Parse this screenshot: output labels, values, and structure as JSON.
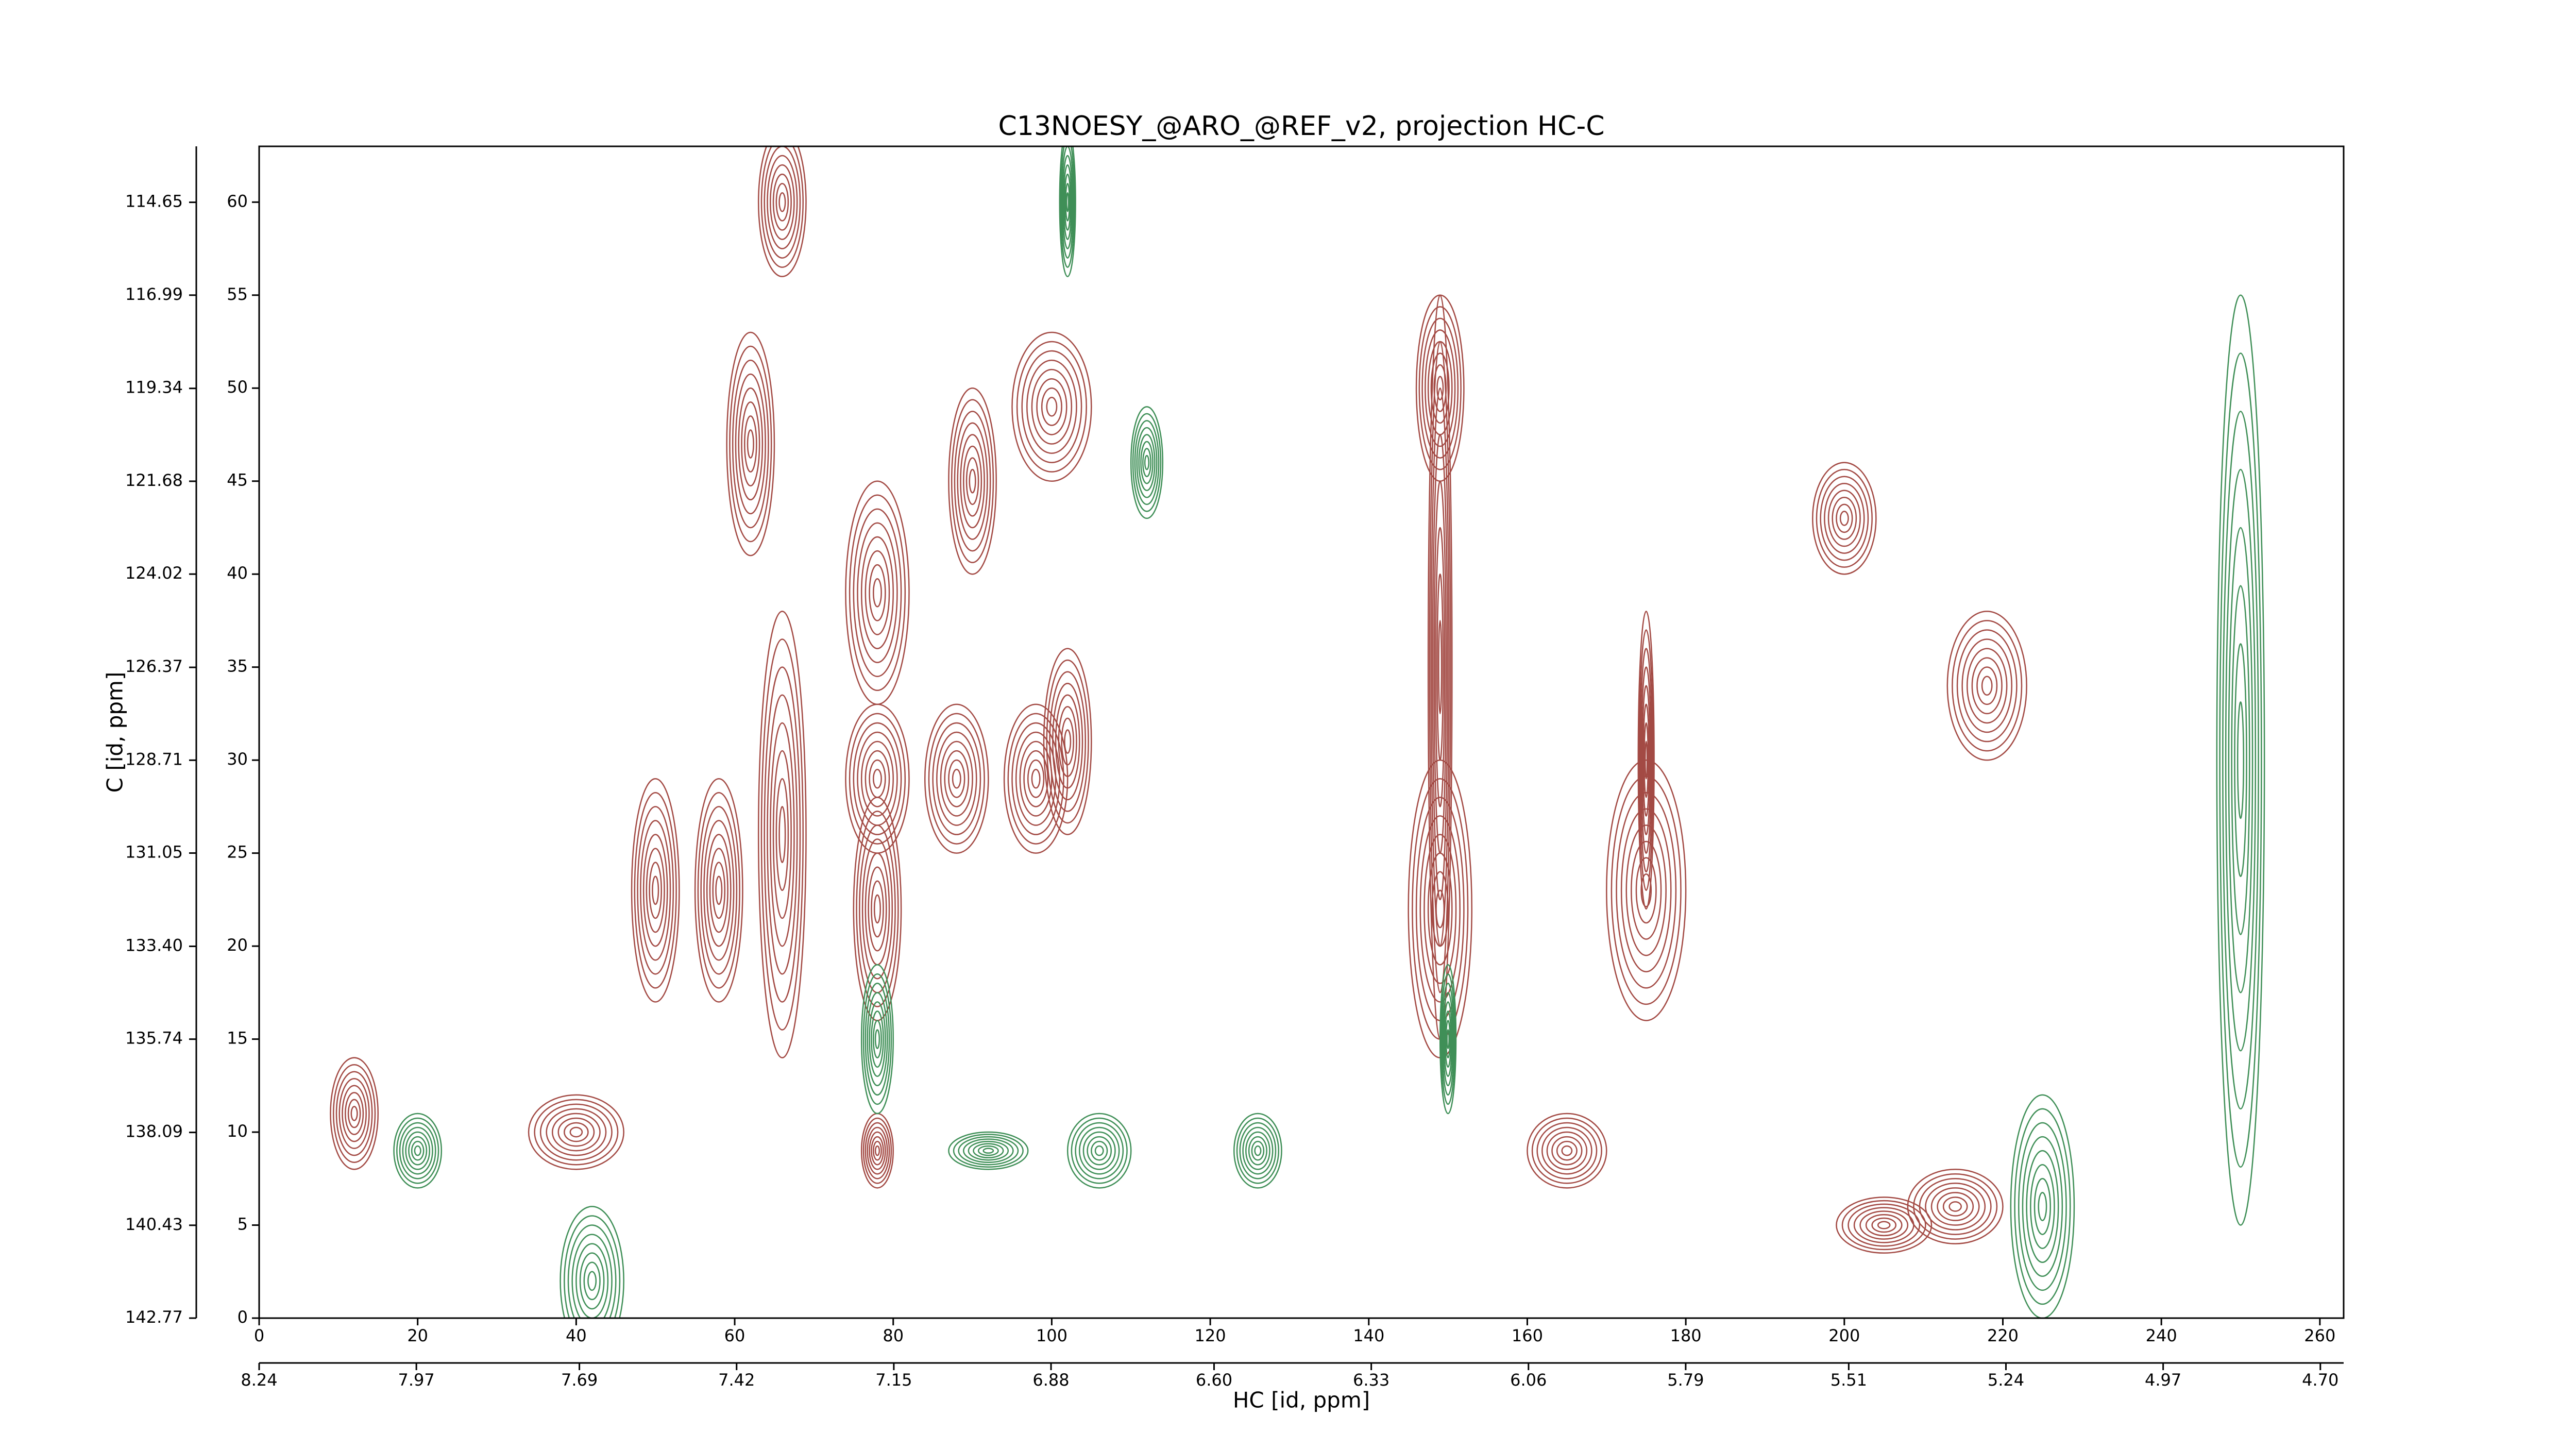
{
  "chart_data": {
    "type": "contour",
    "title": "C13NOESY_@ARO_@REF_v2, projection HC-C",
    "xlabel": "HC [id, ppm]",
    "ylabel": "C [id, ppm]",
    "xlim": [
      0,
      263
    ],
    "xticks": [
      0,
      20,
      40,
      60,
      80,
      100,
      120,
      140,
      160,
      180,
      200,
      220,
      240,
      260
    ],
    "ylim": [
      0,
      63
    ],
    "yticks": [
      0,
      5,
      10,
      15,
      20,
      25,
      30,
      35,
      40,
      45,
      50,
      55,
      60
    ],
    "x2lim": [
      8.24,
      4.66
    ],
    "x2ticks": [
      8.24,
      7.97,
      7.69,
      7.42,
      7.15,
      6.88,
      {
        "value": 6.6,
        "label": "6.60"
      },
      6.33,
      6.06,
      5.79,
      5.51,
      5.24,
      4.97,
      {
        "value": 4.7,
        "label": "4.70"
      }
    ],
    "y2lim": [
      142.77,
      113.24
    ],
    "y2ticks": [
      142.77,
      140.43,
      138.09,
      135.74,
      {
        "value": 133.4,
        "label": "133.40"
      },
      131.05,
      128.71,
      126.37,
      124.02,
      121.68,
      119.34,
      116.99,
      114.65
    ],
    "contours": [
      {
        "color": "#a34a44",
        "peaks": [
          {
            "x": 62,
            "y": 47,
            "rx": 3,
            "ry": 6
          },
          {
            "x": 78,
            "y": 39,
            "rx": 4,
            "ry": 6
          },
          {
            "x": 90,
            "y": 45,
            "rx": 3,
            "ry": 5
          },
          {
            "x": 100,
            "y": 49,
            "rx": 5,
            "ry": 4
          },
          {
            "x": 149,
            "y": 50,
            "rx": 3,
            "ry": 5
          },
          {
            "x": 149,
            "y": 22,
            "rx": 4,
            "ry": 8
          },
          {
            "x": 149,
            "y": 35,
            "rx": 1.5,
            "ry": 20
          },
          {
            "x": 50,
            "y": 23,
            "rx": 3,
            "ry": 6
          },
          {
            "x": 58,
            "y": 23,
            "rx": 3,
            "ry": 6
          },
          {
            "x": 66,
            "y": 26,
            "rx": 3,
            "ry": 12
          },
          {
            "x": 78,
            "y": 22,
            "rx": 3,
            "ry": 6
          },
          {
            "x": 78,
            "y": 29,
            "rx": 4,
            "ry": 4
          },
          {
            "x": 88,
            "y": 29,
            "rx": 4,
            "ry": 4
          },
          {
            "x": 98,
            "y": 29,
            "rx": 4,
            "ry": 4
          },
          {
            "x": 102,
            "y": 31,
            "rx": 3,
            "ry": 5
          },
          {
            "x": 175,
            "y": 23,
            "rx": 5,
            "ry": 7
          },
          {
            "x": 175,
            "y": 30,
            "rx": 1,
            "ry": 8
          },
          {
            "x": 218,
            "y": 34,
            "rx": 5,
            "ry": 4
          },
          {
            "x": 200,
            "y": 43,
            "rx": 4,
            "ry": 3
          },
          {
            "x": 40,
            "y": 10,
            "rx": 6,
            "ry": 2
          },
          {
            "x": 12,
            "y": 11,
            "rx": 3,
            "ry": 3
          },
          {
            "x": 66,
            "y": 60,
            "rx": 3,
            "ry": 4
          },
          {
            "x": 78,
            "y": 9,
            "rx": 2,
            "ry": 2
          },
          {
            "x": 205,
            "y": 5,
            "rx": 6,
            "ry": 1.5
          },
          {
            "x": 214,
            "y": 6,
            "rx": 6,
            "ry": 2
          },
          {
            "x": 165,
            "y": 9,
            "rx": 5,
            "ry": 2
          }
        ]
      },
      {
        "color": "#3f8f57",
        "peaks": [
          {
            "x": 42,
            "y": 2,
            "rx": 4,
            "ry": 4
          },
          {
            "x": 78,
            "y": 15,
            "rx": 2,
            "ry": 4
          },
          {
            "x": 102,
            "y": 60,
            "rx": 1,
            "ry": 4
          },
          {
            "x": 150,
            "y": 15,
            "rx": 1,
            "ry": 4
          },
          {
            "x": 112,
            "y": 46,
            "rx": 2,
            "ry": 3
          },
          {
            "x": 20,
            "y": 9,
            "rx": 3,
            "ry": 2
          },
          {
            "x": 106,
            "y": 9,
            "rx": 4,
            "ry": 2
          },
          {
            "x": 126,
            "y": 9,
            "rx": 3,
            "ry": 2
          },
          {
            "x": 225,
            "y": 6,
            "rx": 4,
            "ry": 6
          },
          {
            "x": 250,
            "y": 30,
            "rx": 3,
            "ry": 25
          },
          {
            "x": 92,
            "y": 9,
            "rx": 5,
            "ry": 1
          }
        ]
      }
    ]
  }
}
